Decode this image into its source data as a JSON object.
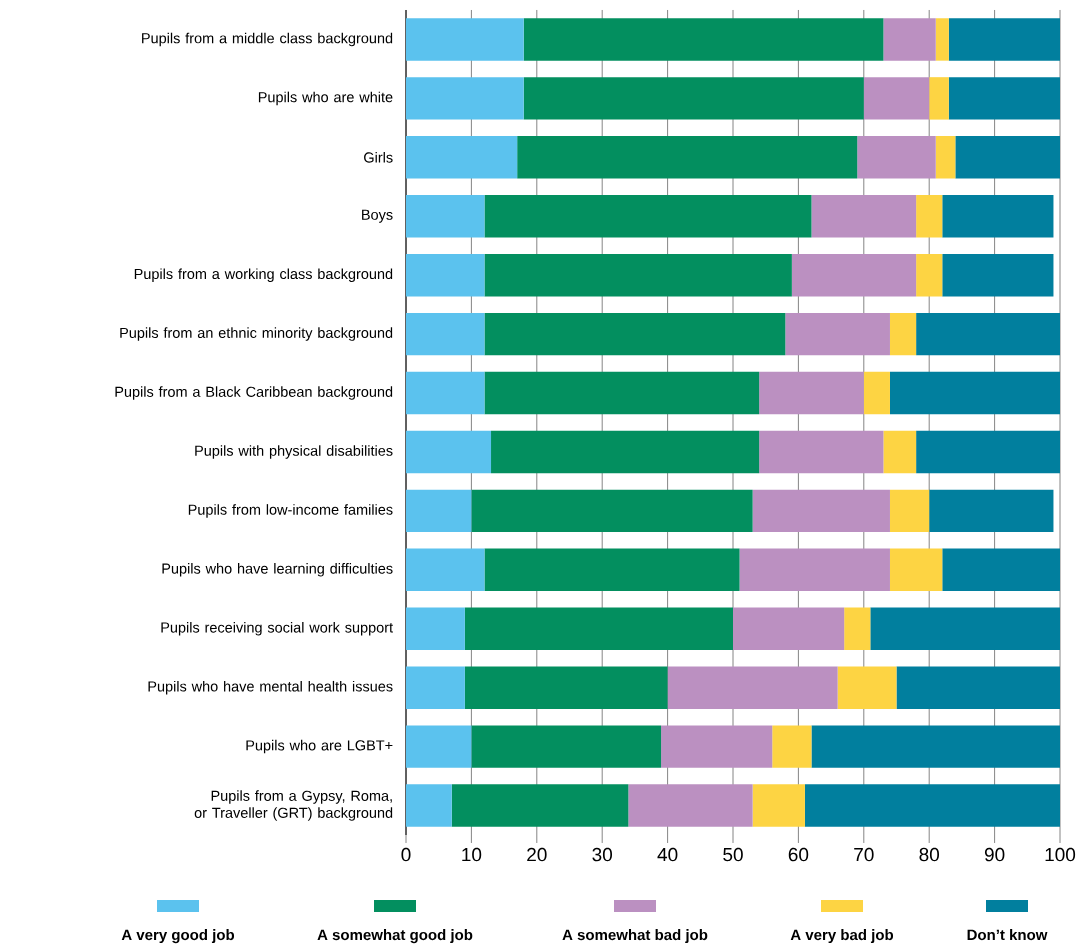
{
  "chart_data": {
    "type": "bar",
    "orientation": "horizontal",
    "stacked": true,
    "categories": [
      "Pupils from a middle class background",
      "Pupils who are white",
      "Girls",
      "Boys",
      "Pupils from a working class background",
      "Pupils from an ethnic minority background",
      "Pupils from a Black Caribbean background",
      "Pupils with physical disabilities",
      "Pupils from low-income families",
      "Pupils who have learning difficulties",
      "Pupils receiving social work support",
      "Pupils who have mental health issues",
      "Pupils who are LGBT+",
      "Pupils from a Gypsy, Roma, or Traveller (GRT) background"
    ],
    "series": [
      {
        "name": "A very good job",
        "color": "#5bc2ee",
        "values": [
          18,
          18,
          17,
          12,
          12,
          12,
          12,
          13,
          10,
          12,
          9,
          9,
          10,
          7
        ]
      },
      {
        "name": "A somewhat good job",
        "color": "#038f5f",
        "values": [
          55,
          52,
          52,
          50,
          47,
          46,
          42,
          41,
          43,
          39,
          41,
          31,
          29,
          27
        ]
      },
      {
        "name": "A somewhat bad job",
        "color": "#bb90c1",
        "values": [
          8,
          10,
          12,
          16,
          19,
          16,
          16,
          19,
          21,
          23,
          17,
          26,
          17,
          19
        ]
      },
      {
        "name": "A very bad job",
        "color": "#fdd443",
        "values": [
          2,
          3,
          3,
          4,
          4,
          4,
          4,
          5,
          6,
          8,
          4,
          9,
          6,
          8
        ]
      },
      {
        "name": "Don’t know",
        "color": "#017f9e",
        "values": [
          17,
          17,
          16,
          17,
          17,
          22,
          26,
          22,
          19,
          18,
          29,
          25,
          38,
          39
        ]
      }
    ],
    "xlim": [
      0,
      100
    ],
    "xticks": [
      0,
      10,
      20,
      30,
      40,
      50,
      60,
      70,
      80,
      90,
      100
    ],
    "grid": "x",
    "legend": "bottom"
  }
}
